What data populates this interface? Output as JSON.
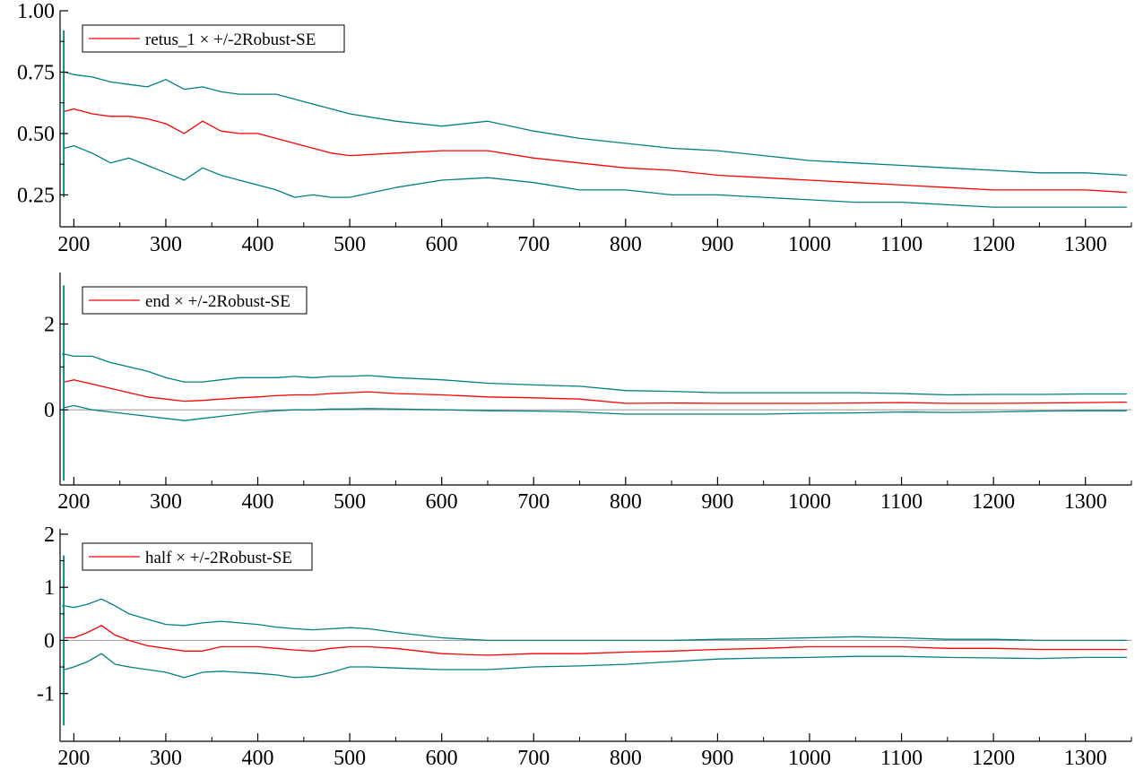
{
  "colors": {
    "estimate": "#ff0000",
    "band": "#008080",
    "zero_line": "#a0a0a0",
    "axis": "#000000"
  },
  "chart_data": [
    {
      "type": "line",
      "legend": "retus_1 × +/-2Robust-SE",
      "legend_position": "top-left",
      "xlim": [
        185,
        1350
      ],
      "ylim": [
        0.12,
        1.0
      ],
      "xticks": [
        200,
        300,
        400,
        500,
        600,
        700,
        800,
        900,
        1000,
        1100,
        1200,
        1300
      ],
      "yticks": [
        0.25,
        0.5,
        0.75,
        1.0
      ],
      "ytick_labels": [
        "0.25",
        "0.50",
        "0.75",
        "1.00"
      ],
      "zero_line": false,
      "spike": {
        "x": 189,
        "low": 0.24,
        "high": 0.92
      },
      "x": [
        190,
        200,
        220,
        240,
        260,
        280,
        300,
        320,
        340,
        360,
        380,
        400,
        420,
        440,
        460,
        480,
        500,
        550,
        600,
        650,
        700,
        750,
        800,
        850,
        900,
        950,
        1000,
        1050,
        1100,
        1150,
        1200,
        1250,
        1300,
        1345
      ],
      "series": [
        {
          "role": "upper",
          "values": [
            0.75,
            0.74,
            0.73,
            0.71,
            0.7,
            0.69,
            0.72,
            0.68,
            0.69,
            0.67,
            0.66,
            0.66,
            0.66,
            0.64,
            0.62,
            0.6,
            0.58,
            0.55,
            0.53,
            0.55,
            0.51,
            0.48,
            0.46,
            0.44,
            0.43,
            0.41,
            0.39,
            0.38,
            0.37,
            0.36,
            0.35,
            0.34,
            0.34,
            0.33
          ]
        },
        {
          "role": "estimate",
          "values": [
            0.59,
            0.6,
            0.58,
            0.57,
            0.57,
            0.56,
            0.54,
            0.5,
            0.55,
            0.51,
            0.5,
            0.5,
            0.48,
            0.46,
            0.44,
            0.42,
            0.41,
            0.42,
            0.43,
            0.43,
            0.4,
            0.38,
            0.36,
            0.35,
            0.33,
            0.32,
            0.31,
            0.3,
            0.29,
            0.28,
            0.27,
            0.27,
            0.27,
            0.26
          ]
        },
        {
          "role": "lower",
          "values": [
            0.44,
            0.45,
            0.42,
            0.38,
            0.4,
            0.37,
            0.34,
            0.31,
            0.36,
            0.33,
            0.31,
            0.29,
            0.27,
            0.24,
            0.25,
            0.24,
            0.24,
            0.28,
            0.31,
            0.32,
            0.3,
            0.27,
            0.27,
            0.25,
            0.25,
            0.24,
            0.23,
            0.22,
            0.22,
            0.21,
            0.2,
            0.2,
            0.2,
            0.2
          ]
        }
      ]
    },
    {
      "type": "line",
      "legend": "end × +/-2Robust-SE",
      "legend_position": "top-left",
      "xlim": [
        185,
        1350
      ],
      "ylim": [
        -1.75,
        3.2
      ],
      "xticks": [
        200,
        300,
        400,
        500,
        600,
        700,
        800,
        900,
        1000,
        1100,
        1200,
        1300
      ],
      "yticks": [
        0,
        2
      ],
      "ytick_labels": [
        "0",
        "2"
      ],
      "zero_line": true,
      "spike": {
        "x": 189,
        "low": -1.65,
        "high": 2.9
      },
      "x": [
        190,
        200,
        220,
        240,
        260,
        280,
        300,
        320,
        340,
        360,
        380,
        400,
        420,
        440,
        460,
        480,
        500,
        520,
        550,
        600,
        650,
        700,
        750,
        800,
        850,
        900,
        950,
        1000,
        1050,
        1100,
        1150,
        1200,
        1250,
        1300,
        1345
      ],
      "series": [
        {
          "role": "upper",
          "values": [
            1.3,
            1.25,
            1.25,
            1.1,
            1.0,
            0.9,
            0.75,
            0.65,
            0.65,
            0.7,
            0.75,
            0.75,
            0.75,
            0.78,
            0.75,
            0.78,
            0.78,
            0.8,
            0.75,
            0.7,
            0.62,
            0.58,
            0.55,
            0.45,
            0.43,
            0.4,
            0.4,
            0.4,
            0.4,
            0.38,
            0.35,
            0.36,
            0.36,
            0.37,
            0.37
          ]
        },
        {
          "role": "estimate",
          "values": [
            0.65,
            0.7,
            0.6,
            0.5,
            0.4,
            0.3,
            0.25,
            0.2,
            0.22,
            0.25,
            0.28,
            0.3,
            0.33,
            0.35,
            0.35,
            0.38,
            0.4,
            0.42,
            0.38,
            0.35,
            0.3,
            0.28,
            0.25,
            0.15,
            0.16,
            0.15,
            0.15,
            0.15,
            0.16,
            0.17,
            0.15,
            0.15,
            0.16,
            0.17,
            0.18
          ]
        },
        {
          "role": "lower",
          "values": [
            0.05,
            0.1,
            0.0,
            -0.05,
            -0.1,
            -0.15,
            -0.2,
            -0.25,
            -0.2,
            -0.15,
            -0.1,
            -0.05,
            -0.02,
            0.0,
            0.0,
            0.02,
            0.02,
            0.03,
            0.02,
            0.0,
            -0.02,
            -0.03,
            -0.05,
            -0.1,
            -0.1,
            -0.1,
            -0.1,
            -0.08,
            -0.07,
            -0.05,
            -0.06,
            -0.05,
            -0.03,
            -0.02,
            -0.02
          ]
        }
      ]
    },
    {
      "type": "line",
      "legend": "half × +/-2Robust-SE",
      "legend_position": "top-left",
      "xlim": [
        185,
        1350
      ],
      "ylim": [
        -1.9,
        2.1
      ],
      "xticks": [
        200,
        300,
        400,
        500,
        600,
        700,
        800,
        900,
        1000,
        1100,
        1200,
        1300
      ],
      "yticks": [
        -1,
        0,
        1,
        2
      ],
      "ytick_labels": [
        "-1",
        "0",
        "1",
        "2"
      ],
      "zero_line": true,
      "spike": {
        "x": 189,
        "low": -1.6,
        "high": 1.6
      },
      "x": [
        190,
        200,
        215,
        230,
        245,
        260,
        280,
        300,
        320,
        340,
        360,
        380,
        400,
        420,
        440,
        460,
        480,
        500,
        520,
        550,
        600,
        650,
        700,
        750,
        800,
        850,
        900,
        950,
        1000,
        1050,
        1100,
        1150,
        1200,
        1250,
        1300,
        1345
      ],
      "series": [
        {
          "role": "upper",
          "values": [
            0.65,
            0.62,
            0.68,
            0.78,
            0.65,
            0.5,
            0.4,
            0.3,
            0.28,
            0.33,
            0.36,
            0.33,
            0.3,
            0.25,
            0.22,
            0.2,
            0.22,
            0.24,
            0.22,
            0.15,
            0.05,
            0.0,
            0.0,
            0.0,
            0.0,
            0.0,
            0.02,
            0.03,
            0.05,
            0.07,
            0.05,
            0.02,
            0.02,
            0.0,
            0.0,
            0.0
          ]
        },
        {
          "role": "estimate",
          "values": [
            0.05,
            0.05,
            0.15,
            0.28,
            0.1,
            0.0,
            -0.1,
            -0.15,
            -0.2,
            -0.2,
            -0.12,
            -0.12,
            -0.12,
            -0.15,
            -0.18,
            -0.2,
            -0.15,
            -0.12,
            -0.12,
            -0.15,
            -0.25,
            -0.28,
            -0.25,
            -0.25,
            -0.22,
            -0.2,
            -0.17,
            -0.15,
            -0.12,
            -0.12,
            -0.12,
            -0.15,
            -0.15,
            -0.17,
            -0.17,
            -0.17
          ]
        },
        {
          "role": "lower",
          "values": [
            -0.55,
            -0.5,
            -0.4,
            -0.25,
            -0.45,
            -0.5,
            -0.55,
            -0.6,
            -0.7,
            -0.6,
            -0.58,
            -0.6,
            -0.62,
            -0.65,
            -0.7,
            -0.68,
            -0.6,
            -0.5,
            -0.5,
            -0.52,
            -0.55,
            -0.55,
            -0.5,
            -0.48,
            -0.45,
            -0.4,
            -0.35,
            -0.33,
            -0.32,
            -0.3,
            -0.3,
            -0.32,
            -0.33,
            -0.34,
            -0.32,
            -0.32
          ]
        }
      ]
    }
  ]
}
